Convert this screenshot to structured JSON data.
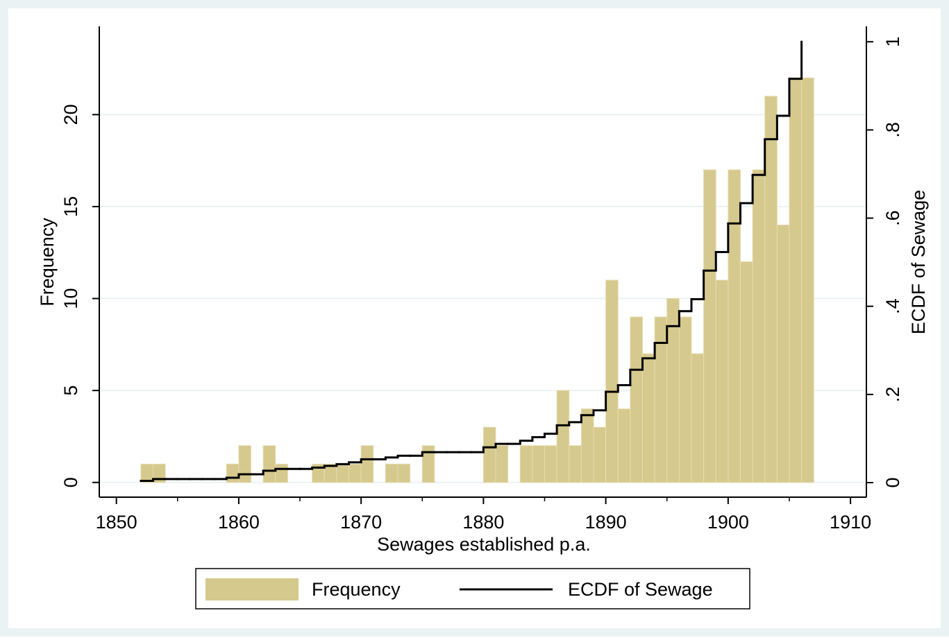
{
  "chart_data": {
    "type": "histogram",
    "x_label": "Sewages established p.a.",
    "y_label": "Frequency",
    "y2_label": "ECDF of Sewage",
    "bins": [
      1852,
      1853,
      1854,
      1855,
      1856,
      1857,
      1858,
      1859,
      1860,
      1861,
      1862,
      1863,
      1864,
      1865,
      1866,
      1867,
      1868,
      1869,
      1870,
      1871,
      1872,
      1873,
      1874,
      1875,
      1876,
      1877,
      1878,
      1879,
      1880,
      1881,
      1882,
      1883,
      1884,
      1885,
      1886,
      1887,
      1888,
      1889,
      1890,
      1891,
      1892,
      1893,
      1894,
      1895,
      1896,
      1897,
      1898,
      1899,
      1900,
      1901,
      1902,
      1903,
      1904,
      1905,
      1906,
      1907
    ],
    "series": [
      {
        "name": "Frequency",
        "color": "#d6c98e",
        "values": [
          1,
          1,
          0,
          0,
          0,
          0,
          0,
          1,
          2,
          0,
          2,
          1,
          0,
          0,
          1,
          1,
          1,
          1,
          2,
          0,
          1,
          1,
          0,
          2,
          0,
          0,
          0,
          0,
          3,
          2,
          0,
          2,
          2,
          2,
          5,
          2,
          4,
          3,
          11,
          4,
          9,
          7,
          9,
          10,
          9,
          7,
          17,
          11,
          17,
          12,
          17,
          21,
          14,
          22,
          22
        ]
      },
      {
        "name": "ECDF of Sewage",
        "color": "#000000",
        "axis": "y2",
        "x": [
          1852,
          1853,
          1854,
          1855,
          1856,
          1857,
          1858,
          1859,
          1860,
          1861,
          1862,
          1863,
          1864,
          1865,
          1866,
          1867,
          1868,
          1869,
          1870,
          1871,
          1872,
          1873,
          1874,
          1875,
          1876,
          1877,
          1878,
          1879,
          1880,
          1881,
          1882,
          1883,
          1884,
          1885,
          1886,
          1887,
          1888,
          1889,
          1890,
          1891,
          1892,
          1893,
          1894,
          1895,
          1896,
          1897,
          1898,
          1899,
          1900,
          1901,
          1902,
          1903,
          1904,
          1905,
          1906
        ],
        "values": [
          0.004,
          0.008,
          0.008,
          0.008,
          0.008,
          0.008,
          0.008,
          0.011,
          0.019,
          0.019,
          0.027,
          0.031,
          0.031,
          0.031,
          0.034,
          0.038,
          0.042,
          0.046,
          0.053,
          0.053,
          0.057,
          0.061,
          0.061,
          0.069,
          0.069,
          0.069,
          0.069,
          0.069,
          0.08,
          0.088,
          0.088,
          0.095,
          0.103,
          0.111,
          0.13,
          0.137,
          0.153,
          0.164,
          0.206,
          0.221,
          0.256,
          0.282,
          0.317,
          0.355,
          0.389,
          0.416,
          0.481,
          0.523,
          0.588,
          0.634,
          0.698,
          0.779,
          0.832,
          0.916,
          1.0
        ]
      }
    ],
    "xlim": [
      1848.6,
      1911.3
    ],
    "xticks": [
      1850,
      1860,
      1870,
      1880,
      1890,
      1900,
      1910
    ],
    "ylim": [
      -0.8,
      24.8
    ],
    "yticks": [
      0,
      5,
      10,
      15,
      20
    ],
    "y2lim": [
      -0.033,
      1.035
    ],
    "y2ticks": [
      0,
      {
        "value": 0.2,
        "label": ".2"
      },
      {
        "value": 0.4,
        "label": ".4"
      },
      {
        "value": 0.6,
        "label": ".6"
      },
      {
        "value": 0.8,
        "label": ".8"
      },
      1
    ],
    "grid": true
  }
}
